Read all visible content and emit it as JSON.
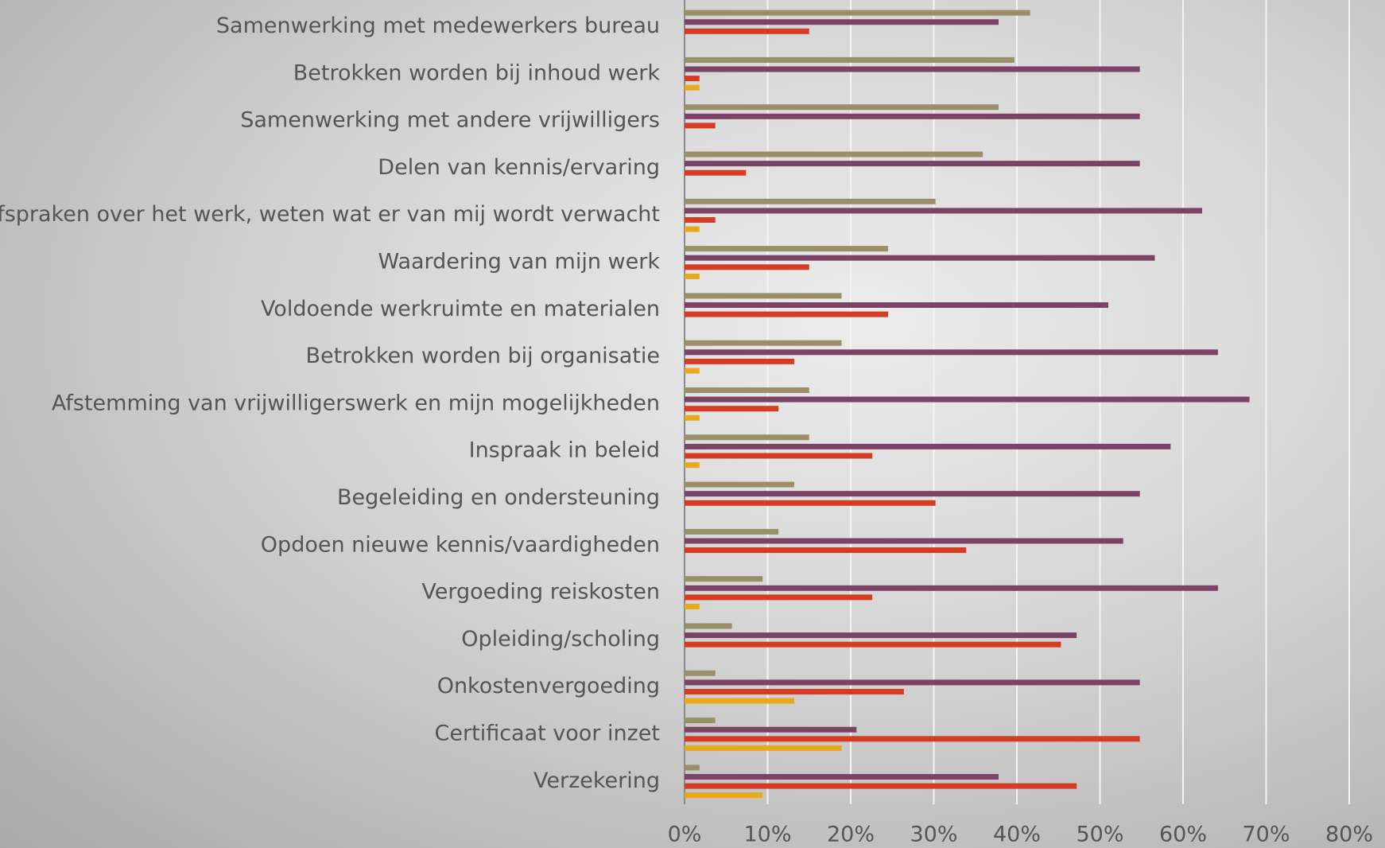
{
  "chart_data": {
    "type": "barh",
    "categories": [
      "Samenwerking met medewerkers bureau",
      "Betrokken worden bij inhoud werk",
      "Samenwerking met andere vrijwilligers",
      "Delen van kennis/ervaring",
      "Afspraken over het werk, weten wat er van mij wordt verwacht",
      "Waardering van mijn werk",
      "Voldoende werkruimte en materialen",
      "Betrokken worden bij organisatie",
      "Afstemming van vrijwilligerswerk en mijn mogelijkheden",
      "Inspraak in beleid",
      "Begeleiding en ondersteuning",
      "Opdoen nieuwe kennis/vaardigheden",
      "Vergoeding reiskosten",
      "Opleiding/scholing",
      "Onkostenvergoeding",
      "Certificaat voor inzet",
      "Verzekering"
    ],
    "series": [
      {
        "color": "#9b8f6a",
        "values": [
          41.6,
          39.7,
          37.8,
          35.9,
          30.2,
          24.5,
          18.9,
          18.9,
          15.0,
          15.0,
          13.2,
          11.3,
          9.4,
          5.7,
          3.7,
          3.7,
          1.8
        ]
      },
      {
        "color": "#7b4466",
        "values": [
          37.8,
          54.8,
          54.8,
          54.8,
          62.3,
          56.6,
          51.0,
          64.2,
          68.0,
          58.5,
          54.8,
          52.8,
          64.2,
          47.2,
          54.8,
          20.7,
          37.8
        ]
      },
      {
        "color": "#d63b24",
        "values": [
          15.0,
          1.8,
          3.7,
          7.4,
          3.7,
          15.0,
          24.5,
          13.2,
          11.3,
          22.6,
          30.2,
          33.9,
          22.6,
          45.3,
          26.4,
          54.8,
          47.2
        ]
      },
      {
        "color": "#e8a91c",
        "values": [
          0,
          1.8,
          0,
          0,
          1.8,
          1.8,
          0,
          1.8,
          1.8,
          1.8,
          0,
          0,
          1.8,
          0,
          13.2,
          18.9,
          9.4
        ]
      }
    ],
    "xlim": [
      0,
      80
    ],
    "xticks": [
      {
        "value": 0,
        "label": "0%"
      },
      {
        "value": 10,
        "label": "10%"
      },
      {
        "value": 20,
        "label": "20%"
      },
      {
        "value": 30,
        "label": "30%"
      },
      {
        "value": 40,
        "label": "40%"
      },
      {
        "value": 50,
        "label": "50%"
      },
      {
        "value": 60,
        "label": "60%"
      },
      {
        "value": 70,
        "label": "70%"
      },
      {
        "value": 80,
        "label": "80%"
      }
    ],
    "grid": true
  }
}
